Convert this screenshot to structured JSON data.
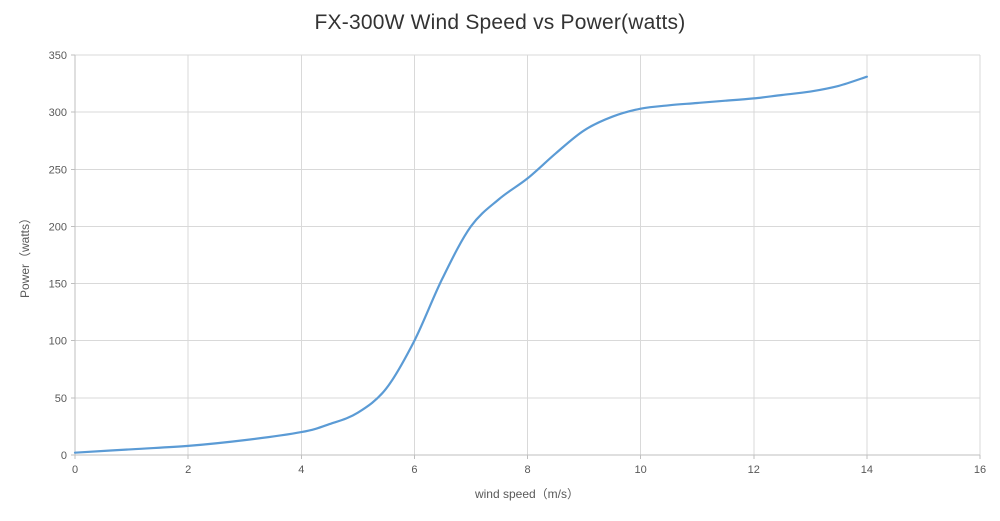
{
  "chart_data": {
    "type": "line",
    "title": "FX-300W Wind Speed vs Power(watts)",
    "xlabel": "wind speed（m/s）",
    "ylabel": "Power（watts）",
    "xlim": [
      0,
      16
    ],
    "ylim": [
      0,
      350
    ],
    "xticks": [
      0,
      2,
      4,
      6,
      8,
      10,
      12,
      14,
      16
    ],
    "yticks": [
      0,
      50,
      100,
      150,
      200,
      250,
      300,
      350
    ],
    "grid": true,
    "legend": false,
    "line_color": "#5b9bd5",
    "series": [
      {
        "name": "Power",
        "x": [
          0,
          1,
          2,
          3,
          4,
          4.5,
          5,
          5.5,
          6,
          6.5,
          7,
          7.5,
          8,
          8.5,
          9,
          9.5,
          10,
          10.5,
          11,
          11.5,
          12,
          12.5,
          13,
          13.5,
          14
        ],
        "y": [
          2,
          5,
          8,
          13,
          20,
          27,
          37,
          58,
          100,
          155,
          200,
          224,
          242,
          264,
          284,
          296,
          303,
          306,
          308,
          310,
          312,
          315,
          318,
          323,
          331
        ]
      }
    ]
  }
}
